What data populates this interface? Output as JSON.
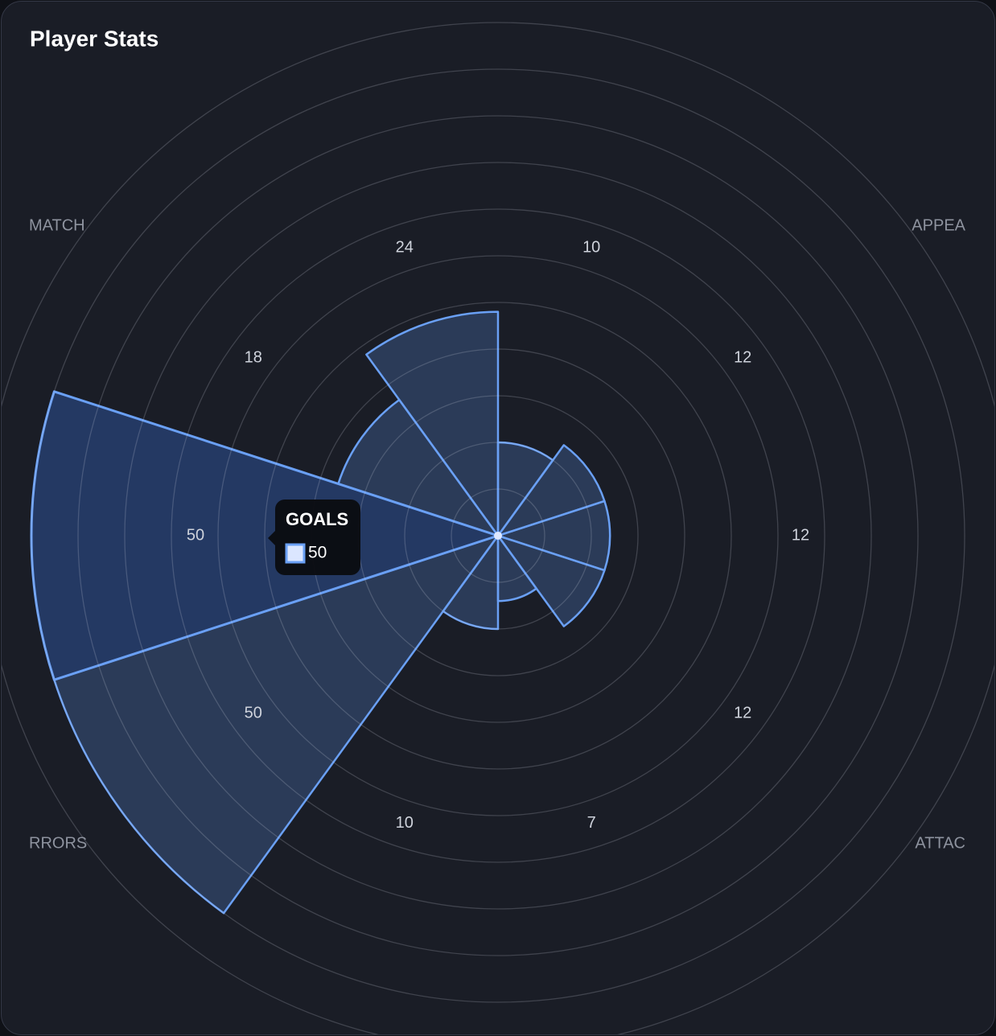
{
  "chart_data": {
    "type": "polarArea",
    "title": "Player Stats",
    "categories": [
      null,
      null,
      null,
      null,
      null,
      null,
      null,
      "GOALS",
      null,
      null
    ],
    "values": [
      10,
      12,
      12,
      12,
      7,
      10,
      50,
      50,
      18,
      24
    ],
    "color": "#6aa0f5",
    "active": 7,
    "rlim": [
      0,
      55
    ],
    "rticks": [
      5,
      10,
      15,
      20,
      25,
      30,
      35,
      40,
      45,
      50,
      55
    ],
    "grid": true,
    "corner_labels": [
      "MATCH",
      "APPEA",
      "RRORS",
      "ATTAC"
    ]
  }
}
